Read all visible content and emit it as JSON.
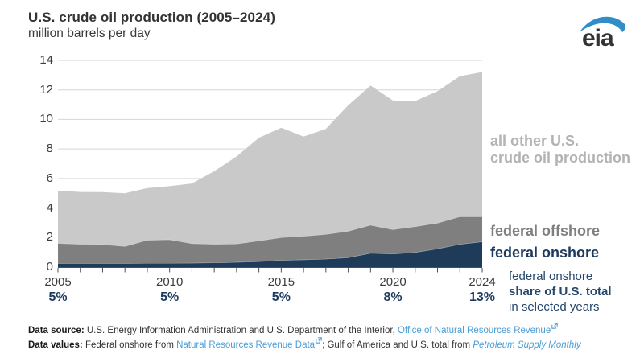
{
  "header": {
    "title": "U.S. crude oil production (2005–2024)",
    "subtitle": "million barrels per day",
    "logo_text": "eia"
  },
  "colors": {
    "federal_onshore": "#1e3c5a",
    "federal_offshore": "#7f7f7f",
    "all_other": "#c9c9c9",
    "navy_text": "#1d3a5e",
    "gridline": "#d6d6d6",
    "axis": "#4d4d4d",
    "link_blue": "#4a9cd6",
    "logo_blue": "#2f8dca"
  },
  "chart_data": {
    "type": "area",
    "stacked": true,
    "title": "U.S. crude oil production (2005–2024)",
    "ylabel": "million barrels per day",
    "xlabel": "",
    "grid": "horizontal",
    "legend_position": "right-of-plot",
    "ylim": [
      0,
      14
    ],
    "y_ticks": [
      0,
      2,
      4,
      6,
      8,
      10,
      12,
      14
    ],
    "x": [
      2005,
      2006,
      2007,
      2008,
      2009,
      2010,
      2011,
      2012,
      2013,
      2014,
      2015,
      2016,
      2017,
      2018,
      2019,
      2020,
      2021,
      2022,
      2023,
      2024
    ],
    "series": [
      {
        "name": "federal onshore",
        "color": "#1e3c5a",
        "values": [
          0.26,
          0.26,
          0.26,
          0.26,
          0.27,
          0.27,
          0.28,
          0.3,
          0.33,
          0.38,
          0.47,
          0.5,
          0.55,
          0.65,
          0.95,
          0.9,
          1.0,
          1.25,
          1.55,
          1.72
        ]
      },
      {
        "name": "federal offshore",
        "color": "#7f7f7f",
        "values": [
          1.35,
          1.3,
          1.28,
          1.15,
          1.56,
          1.6,
          1.32,
          1.26,
          1.25,
          1.4,
          1.54,
          1.6,
          1.68,
          1.79,
          1.9,
          1.65,
          1.75,
          1.74,
          1.87,
          1.7
        ]
      },
      {
        "name": "all other U.S. crude oil production",
        "color": "#c9c9c9",
        "values": [
          3.57,
          3.53,
          3.54,
          3.59,
          3.52,
          3.61,
          4.06,
          4.94,
          5.91,
          6.98,
          7.43,
          6.74,
          7.13,
          8.52,
          9.44,
          8.73,
          8.5,
          8.92,
          9.51,
          9.79
        ]
      }
    ],
    "total_us": [
      5.18,
      5.09,
      5.08,
      5.0,
      5.35,
      5.48,
      5.66,
      6.5,
      7.49,
      8.76,
      9.44,
      8.84,
      9.36,
      10.96,
      12.29,
      11.28,
      11.25,
      11.91,
      12.93,
      13.21
    ],
    "x_tick_labels": [
      {
        "year": 2005,
        "share": "5%"
      },
      {
        "year": 2010,
        "share": "5%"
      },
      {
        "year": 2015,
        "share": "5%"
      },
      {
        "year": 2020,
        "share": "8%"
      },
      {
        "year": 2024,
        "share": "13%"
      }
    ]
  },
  "legend": {
    "other_line1": "all other U.S.",
    "other_line2": "crude oil production",
    "offshore": "federal offshore",
    "onshore": "federal onshore"
  },
  "annotation": {
    "line1": "federal onshore",
    "line2": "share of U.S. total",
    "line3": "in selected years"
  },
  "footer": {
    "line1_label": "Data source:",
    "line1_text": " U.S. Energy Information Administration and U.S. Department of the Interior, ",
    "line1_link": "Office of Natural Resources Revenue",
    "line2_label": "Data values:",
    "line2_text1": " Federal onshore from ",
    "line2_link1": "Natural Resources Revenue Data",
    "line2_text2": "; Gulf of America and U.S. total from ",
    "line2_link2": "Petroleum Supply Monthly"
  }
}
